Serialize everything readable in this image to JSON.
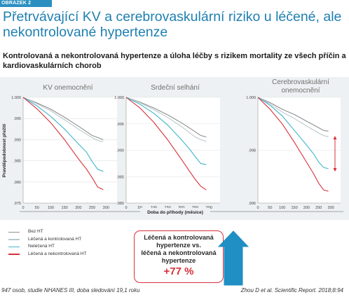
{
  "figure_tag": "OBRÁZEK 2",
  "title": "Přetrvávající KV a cerebrovaskulární riziko u léčené, ale nekontrolované hypertenze",
  "subtitle": "Kontrolovaná a nekontrolovaná hypertenze a úloha léčby s rizikem mortality ze všech příčin a kardiovaskulárních chorob",
  "colors": {
    "accent": "#1f7fb1",
    "panel": "#eef1f3",
    "bez_ht": "#8f8f8f",
    "lecena_kontrolovana": "#b9c8cf",
    "nelecena": "#3fb6c9",
    "lecena_nekontrolovana": "#d9303a"
  },
  "legend": [
    {
      "label": "Bez HT",
      "color_key": "bez_ht"
    },
    {
      "label": "Léčená a kontrolovaná HT",
      "color_key": "lecena_kontrolovana"
    },
    {
      "label": "Neléčená HT",
      "color_key": "nelecena"
    },
    {
      "label": "Léčená a nekontrolovaná HT",
      "color_key": "lecena_nekontrolovana"
    }
  ],
  "shared_x_label": "Doba do příhody (měsíce)",
  "shared_y_label": "Pravděpodobnost přežití",
  "callout": {
    "text_lines": [
      "Léčená a kontrolovaná",
      "hypertenze vs.",
      "léčená a nekontrolovaná",
      "hypertenze"
    ],
    "value": "+77 %"
  },
  "footer_left": "947 osob, studie NHANES III, doba sledování 19,1 roku",
  "footer_right": "Zhou D et al. Scientific Report. 2018;8:94",
  "chart_data": [
    {
      "type": "line",
      "title": "KV onemocnění",
      "xlim": [
        0,
        340
      ],
      "ylim": [
        0.975,
        1.0
      ],
      "x_ticks": [
        0,
        50,
        100,
        150,
        200,
        250,
        300
      ],
      "y_ticks": [
        0.975,
        0.98,
        0.985,
        0.99,
        0.995,
        1.0
      ],
      "y_tick_labels": [
        ".975",
        ".980",
        ".985",
        ".990",
        ".995",
        "1.000"
      ],
      "series": [
        {
          "name": "Bez HT",
          "color_key": "bez_ht",
          "x": [
            0,
            50,
            100,
            150,
            200,
            250,
            270,
            290
          ],
          "y": [
            1.0,
            0.9987,
            0.9972,
            0.9953,
            0.9932,
            0.991,
            0.9905,
            0.99
          ]
        },
        {
          "name": "Léčená a kontrolovaná HT",
          "color_key": "lecena_kontrolovana",
          "x": [
            0,
            50,
            100,
            150,
            200,
            250,
            270,
            290
          ],
          "y": [
            1.0,
            0.9985,
            0.9968,
            0.9947,
            0.9925,
            0.9905,
            0.9898,
            0.9895
          ]
        },
        {
          "name": "Neléčená HT",
          "color_key": "nelecena",
          "x": [
            0,
            50,
            100,
            150,
            200,
            230,
            250,
            270,
            290
          ],
          "y": [
            1.0,
            0.998,
            0.9955,
            0.9925,
            0.989,
            0.987,
            0.9848,
            0.983,
            0.9825
          ]
        },
        {
          "name": "Léčená a nekontrolovaná HT",
          "color_key": "lecena_nekontrolovana",
          "x": [
            0,
            50,
            100,
            150,
            200,
            230,
            250,
            270,
            290
          ],
          "y": [
            1.0,
            0.9973,
            0.994,
            0.99,
            0.9855,
            0.983,
            0.981,
            0.9788,
            0.9782
          ]
        }
      ]
    },
    {
      "type": "line",
      "title": "Srdeční selhání",
      "xlim": [
        0,
        340
      ],
      "ylim": [
        0.98,
        1.0
      ],
      "x_ticks": [
        0,
        50,
        100,
        150,
        200,
        250,
        300
      ],
      "y_ticks": [
        0.98,
        0.985,
        0.99,
        0.995,
        1.0
      ],
      "y_tick_labels": [
        ".980",
        ".985",
        ".990",
        ".995",
        "1.000"
      ],
      "series": [
        {
          "name": "Bez HT",
          "color_key": "bez_ht",
          "x": [
            0,
            50,
            100,
            150,
            200,
            250,
            270,
            290
          ],
          "y": [
            1.0,
            0.9991,
            0.998,
            0.9967,
            0.9952,
            0.9935,
            0.9928,
            0.9925
          ]
        },
        {
          "name": "Léčená a kontrolovaná HT",
          "color_key": "lecena_kontrolovana",
          "x": [
            0,
            50,
            100,
            150,
            200,
            250,
            270,
            290
          ],
          "y": [
            1.0,
            0.999,
            0.9977,
            0.9962,
            0.9945,
            0.9925,
            0.992,
            0.9917
          ]
        },
        {
          "name": "Neléčená HT",
          "color_key": "nelecena",
          "x": [
            0,
            50,
            100,
            150,
            200,
            230,
            250,
            270,
            290
          ],
          "y": [
            1.0,
            0.9987,
            0.997,
            0.9948,
            0.992,
            0.9902,
            0.9888,
            0.9875,
            0.9873
          ]
        },
        {
          "name": "Léčená a nekontrolovaná HT",
          "color_key": "lecena_nekontrolovana",
          "x": [
            0,
            50,
            100,
            150,
            200,
            230,
            250,
            270,
            290
          ],
          "y": [
            1.0,
            0.998,
            0.9953,
            0.992,
            0.9883,
            0.986,
            0.9845,
            0.9832,
            0.9825
          ]
        }
      ]
    },
    {
      "type": "line",
      "title": "Cerebrovaskulární onemocnění",
      "xlim": [
        0,
        340
      ],
      "ylim": [
        0.996,
        1.0
      ],
      "x_ticks": [
        0,
        50,
        100,
        150,
        200,
        250,
        300
      ],
      "y_ticks": [
        0.996,
        0.998,
        1.0
      ],
      "y_tick_labels": [
        ".996",
        ".998",
        "1.000"
      ],
      "series": [
        {
          "name": "Bez HT",
          "color_key": "bez_ht",
          "x": [
            0,
            50,
            100,
            150,
            200,
            250,
            270,
            290
          ],
          "y": [
            1.0,
            0.9998,
            0.99955,
            0.99935,
            0.9991,
            0.99885,
            0.99875,
            0.99872
          ]
        },
        {
          "name": "Léčená a kontrolovaná HT",
          "color_key": "lecena_kontrolovana",
          "x": [
            0,
            50,
            100,
            150,
            200,
            250,
            270,
            290
          ],
          "y": [
            1.0,
            0.99975,
            0.99945,
            0.9992,
            0.99892,
            0.99865,
            0.99855,
            0.99852
          ]
        },
        {
          "name": "Neléčená HT",
          "color_key": "nelecena",
          "x": [
            0,
            50,
            100,
            150,
            200,
            230,
            250,
            270,
            290
          ],
          "y": [
            1.0,
            0.9997,
            0.9993,
            0.99875,
            0.9982,
            0.99785,
            0.99755,
            0.99735,
            0.9973
          ]
        },
        {
          "name": "Léčená a nekontrolovaná HT",
          "color_key": "lecena_nekontrolovana",
          "x": [
            0,
            50,
            100,
            150,
            200,
            230,
            250,
            270,
            290
          ],
          "y": [
            1.0,
            0.99955,
            0.999,
            0.9983,
            0.99755,
            0.9971,
            0.99675,
            0.9965,
            0.99645
          ]
        }
      ]
    }
  ]
}
